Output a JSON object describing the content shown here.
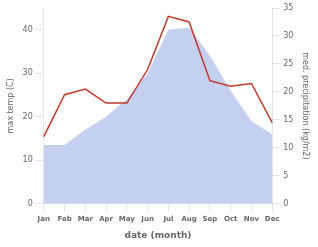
{
  "chart_data": {
    "type": "line",
    "categories": [
      "Jan",
      "Feb",
      "Mar",
      "Apr",
      "May",
      "Jun",
      "Jul",
      "Aug",
      "Sep",
      "Oct",
      "Nov",
      "Dec"
    ],
    "series": [
      {
        "type": "area",
        "color": "#c5cff0",
        "values": [
          13.5,
          13.5,
          17.0,
          20.0,
          24.0,
          30.0,
          40.0,
          40.5,
          34.0,
          26.0,
          19.0,
          16.0
        ]
      },
      {
        "type": "line",
        "color": "#c0392b",
        "axis": "y2",
        "values": [
          12.0,
          19.5,
          20.5,
          18.0,
          18.0,
          24.0,
          33.5,
          32.5,
          22.0,
          21.0,
          21.5,
          14.5
        ]
      }
    ],
    "xlabel": "date (month)",
    "ylabel": "max temp (C)",
    "y2label": "med. precipitation (kg/m2)",
    "ylim": [
      0,
      45
    ],
    "yticks": [
      0,
      10,
      20,
      30,
      40
    ],
    "y2lim": [
      0,
      35
    ],
    "y2ticks": [
      0,
      5,
      10,
      15,
      20,
      25,
      30,
      35
    ],
    "grid": false
  }
}
